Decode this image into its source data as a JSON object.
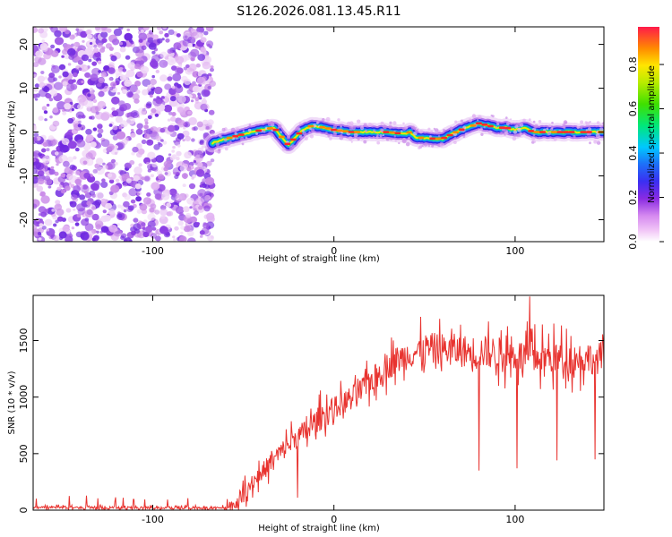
{
  "title": "S126.2026.081.13.45.R11",
  "chart_data": [
    {
      "type": "heatmap",
      "name": "spectrogram",
      "xlabel": "Height of straight line (km)",
      "ylabel": "Frequency (Hz)",
      "xlim": [
        -166,
        149
      ],
      "ylim": [
        -25,
        24
      ],
      "xticks": [
        -100,
        0,
        100
      ],
      "yticks": [
        -20,
        -10,
        0,
        10,
        20
      ],
      "colorbar": {
        "label": "Normalized spectral amplitude",
        "range": [
          0,
          0.97
        ],
        "ticks": [
          0,
          0.2,
          0.4,
          0.6,
          0.8
        ],
        "tick_labels": [
          "0.0",
          "0.2",
          "0.4",
          "0.6",
          "0.8"
        ]
      },
      "noise_region_x": [
        -166,
        -67
      ],
      "signal_track": {
        "x": [
          -67,
          -55,
          -40,
          -33,
          -29,
          -25,
          -21,
          -17,
          -12,
          -5,
          0,
          10,
          20,
          30,
          40,
          42,
          45,
          55,
          60,
          65,
          70,
          75,
          80,
          85,
          90,
          95,
          100,
          105,
          110,
          120,
          130,
          140,
          149
        ],
        "freq_hz": [
          -2.5,
          -1.0,
          0.5,
          1.0,
          -1.0,
          -3.0,
          -1.0,
          0.5,
          1.5,
          1.0,
          0.5,
          0.0,
          0.0,
          0.0,
          -0.5,
          0.0,
          -1.2,
          -1.5,
          -1.5,
          -0.5,
          0.5,
          1.2,
          2.0,
          1.5,
          1.0,
          1.0,
          0.5,
          1.0,
          0.0,
          0.0,
          0.0,
          0.0,
          0.0
        ]
      }
    },
    {
      "type": "line",
      "name": "snr",
      "xlabel": "Height of straight line (km)",
      "ylabel": "SNR (10 * v/v)",
      "xlim": [
        -166,
        149
      ],
      "ylim": [
        0,
        1900
      ],
      "xticks": [
        -100,
        0,
        100
      ],
      "yticks": [
        0,
        500,
        1000,
        1500
      ],
      "color": "#e8332f",
      "series": [
        {
          "name": "SNR",
          "x": [
            -166,
            -150,
            -140,
            -120,
            -100,
            -80,
            -60,
            -55,
            -50,
            -45,
            -40,
            -35,
            -30,
            -25,
            -20,
            -15,
            -10,
            -5,
            0,
            5,
            10,
            15,
            20,
            25,
            30,
            35,
            40,
            45,
            50,
            55,
            60,
            65,
            70,
            75,
            80,
            85,
            90,
            95,
            100,
            110,
            120,
            130,
            140,
            149
          ],
          "values": [
            20,
            25,
            20,
            20,
            20,
            20,
            20,
            40,
            150,
            250,
            330,
            420,
            500,
            580,
            650,
            700,
            780,
            850,
            900,
            950,
            1000,
            1050,
            1150,
            1200,
            1280,
            1330,
            1370,
            1400,
            1420,
            1430,
            1420,
            1420,
            1410,
            1400,
            1400,
            1400,
            1390,
            1380,
            1370,
            1350,
            1350,
            1340,
            1350,
            1350
          ]
        }
      ],
      "dips": [
        {
          "x": 80,
          "value": 350
        },
        {
          "x": 101,
          "value": 370
        },
        {
          "x": 123,
          "value": 440
        },
        {
          "x": 144,
          "value": 450
        },
        {
          "x": -20,
          "value": 110
        }
      ],
      "peak": {
        "x": 108,
        "value": 1890
      }
    }
  ]
}
